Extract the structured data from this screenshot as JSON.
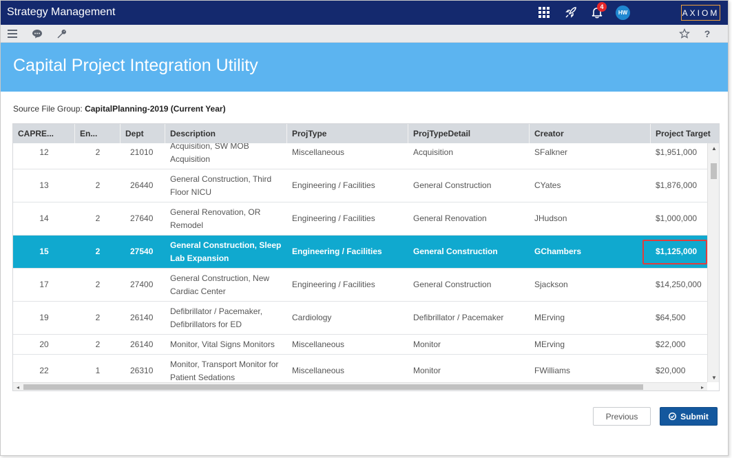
{
  "app": {
    "title": "Strategy Management",
    "logo": "AXIOM"
  },
  "topbar": {
    "icons": [
      "apps-grid-icon",
      "rocket-icon",
      "bell-icon"
    ],
    "notification_count": "4",
    "avatar_initials": "HW"
  },
  "toolbar": {
    "icons": [
      "menu-icon",
      "chat-icon",
      "wrench-icon",
      "star-icon",
      "help-icon"
    ],
    "help_label": "?"
  },
  "page": {
    "title": "Capital Project Integration Utility",
    "source_label": "Source File Group:",
    "source_value": "CapitalPlanning-2019 (Current Year)"
  },
  "grid": {
    "columns": [
      "CAPRE...",
      "En...",
      "Dept",
      "Description",
      "ProjType",
      "ProjTypeDetail",
      "Creator",
      "Project Target"
    ],
    "rows": [
      {
        "capre": "12",
        "en": "2",
        "dept": "21010",
        "desc": "Acquisition, SW MOB Acquisition",
        "projtype": "Miscellaneous",
        "detail": "Acquisition",
        "creator": "SFalkner",
        "target": "$1,951,000"
      },
      {
        "capre": "13",
        "en": "2",
        "dept": "26440",
        "desc": "General Construction, Third Floor NICU",
        "projtype": "Engineering / Facilities",
        "detail": "General Construction",
        "creator": "CYates",
        "target": "$1,876,000"
      },
      {
        "capre": "14",
        "en": "2",
        "dept": "27640",
        "desc": "General Renovation, OR Remodel",
        "projtype": "Engineering / Facilities",
        "detail": "General Renovation",
        "creator": "JHudson",
        "target": "$1,000,000"
      },
      {
        "capre": "15",
        "en": "2",
        "dept": "27540",
        "desc": "General Construction, Sleep Lab Expansion",
        "projtype": "Engineering / Facilities",
        "detail": "General Construction",
        "creator": "GChambers",
        "target": "$1,125,000"
      },
      {
        "capre": "17",
        "en": "2",
        "dept": "27400",
        "desc": "General Construction, New Cardiac Center",
        "projtype": "Engineering / Facilities",
        "detail": "General Construction",
        "creator": "Sjackson",
        "target": "$14,250,000"
      },
      {
        "capre": "19",
        "en": "2",
        "dept": "26140",
        "desc": "Defibrillator / Pacemaker, Defibrillators for ED",
        "projtype": "Cardiology",
        "detail": "Defibrillator / Pacemaker",
        "creator": "MErving",
        "target": "$64,500"
      },
      {
        "capre": "20",
        "en": "2",
        "dept": "26140",
        "desc": "Monitor, Vital Signs Monitors",
        "projtype": "Miscellaneous",
        "detail": "Monitor",
        "creator": "MErving",
        "target": "$22,000"
      },
      {
        "capre": "22",
        "en": "1",
        "dept": "26310",
        "desc": "Monitor, Transport Monitor for Patient Sedations",
        "projtype": "Miscellaneous",
        "detail": "Monitor",
        "creator": "FWilliams",
        "target": "$20,000"
      }
    ],
    "selected_row": "15"
  },
  "buttons": {
    "previous": "Previous",
    "submit": "Submit"
  },
  "colors": {
    "topbar": "#14296e",
    "banner": "#5cb4f0",
    "selected_row": "#10a9cf",
    "submit": "#14589e",
    "highlight_border": "#e23c3c",
    "badge": "#e4262a"
  }
}
